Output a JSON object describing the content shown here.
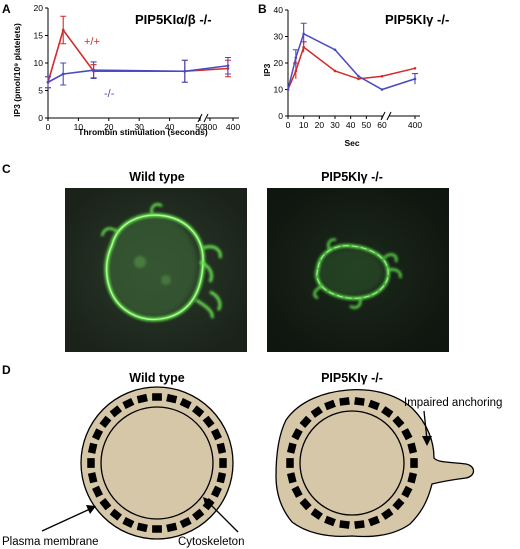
{
  "panels": {
    "A": {
      "letter": "A",
      "title": "PIP5KIα/β -/-",
      "ylabel": "IP3 (pmol/10⁹ platelets)",
      "xlabel": "Thrombin stimulation (seconds)",
      "yticks": [
        "0",
        "5",
        "10",
        "15",
        "20"
      ],
      "xticks": [
        "0",
        "10",
        "20",
        "30",
        "40",
        "50",
        "300",
        "400"
      ],
      "label_wt": "+/+",
      "label_ko": "-/-"
    },
    "B": {
      "letter": "B",
      "title": "PIP5KIγ -/-",
      "ylabel": "IP3",
      "xlabel": "Sec",
      "yticks": [
        "0",
        "10",
        "20",
        "30",
        "40"
      ],
      "xticks": [
        "0",
        "10",
        "20",
        "30",
        "40",
        "50",
        "60",
        "400"
      ]
    },
    "C": {
      "letter": "C",
      "title_left": "Wild type",
      "title_right": "PIP5KIγ -/-"
    },
    "D": {
      "letter": "D",
      "title_left": "Wild type",
      "title_right": "PIP5KIγ -/-",
      "label_impaired": "Impaired anchoring",
      "label_membrane": "Plasma membrane",
      "label_cytoskeleton": "Cytoskeleton"
    }
  },
  "colors": {
    "wild_type": "#d42a2a",
    "knockout": "#4a4ac0",
    "cell_fill": "#d6c7a9",
    "fluor": "#5cd64a"
  },
  "chart_data": [
    {
      "type": "line",
      "panel": "A",
      "axis_break": true,
      "x": [
        0,
        5,
        15,
        45,
        378
      ],
      "ylim": [
        0,
        20
      ],
      "series": [
        {
          "name": "+/+",
          "color": "#d42a2a",
          "values": [
            6.5,
            16.0,
            8.5,
            8.5,
            9.0
          ],
          "errors": [
            1.0,
            2.5,
            1.2,
            2.0,
            1.5
          ]
        },
        {
          "name": "-/-",
          "color": "#4a4ac0",
          "values": [
            6.5,
            8.0,
            8.7,
            8.5,
            9.5
          ],
          "errors": [
            1.0,
            2.0,
            1.5,
            2.0,
            1.5
          ]
        }
      ]
    },
    {
      "type": "line",
      "panel": "B",
      "axis_break": true,
      "x": [
        0,
        5,
        10,
        30,
        45,
        60,
        400
      ],
      "ylim": [
        0,
        40
      ],
      "series": [
        {
          "name": "",
          "color": "#d42a2a",
          "values": [
            10,
            17,
            26,
            17,
            14,
            15,
            18
          ]
        },
        {
          "name": "",
          "color": "#4a4ac0",
          "values": [
            10,
            22,
            31,
            25,
            15,
            10,
            14
          ]
        }
      ],
      "errors": {
        "x": [
          5,
          10,
          400
        ],
        "red": [
          3,
          2,
          0
        ],
        "blue": [
          3,
          4,
          2
        ]
      }
    }
  ]
}
